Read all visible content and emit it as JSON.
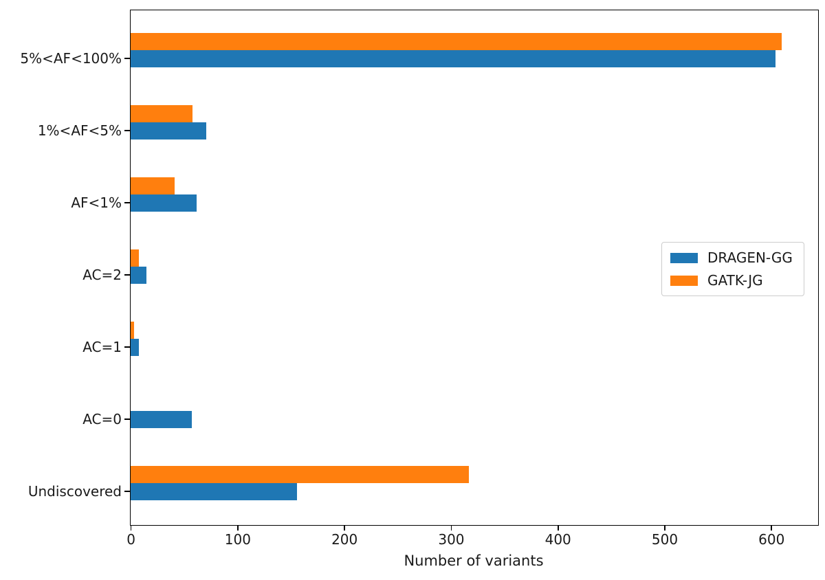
{
  "chart_data": {
    "type": "bar",
    "orientation": "horizontal",
    "title": "",
    "xlabel": "Number of variants",
    "ylabel": "",
    "categories": [
      "5%<AF<100%",
      "1%<AF<5%",
      "AF<1%",
      "AC=2",
      "AC=1",
      "AC=0",
      "Undiscovered"
    ],
    "series": [
      {
        "name": "DRAGEN-GG",
        "color": "#1f77b4",
        "position_in_pair": "lower",
        "values": [
          604,
          71,
          62,
          15,
          8,
          57,
          156
        ]
      },
      {
        "name": "GATK-JG",
        "color": "#ff7f0e",
        "position_in_pair": "upper",
        "values": [
          610,
          58,
          41,
          8,
          3,
          0,
          317
        ]
      }
    ],
    "x_ticks": [
      0,
      100,
      200,
      300,
      400,
      500,
      600
    ],
    "xlim": [
      0,
      644
    ],
    "grid": false,
    "legend_position": "right-middle",
    "spine_color": "#000000",
    "text_color": "#1a1a1a"
  }
}
